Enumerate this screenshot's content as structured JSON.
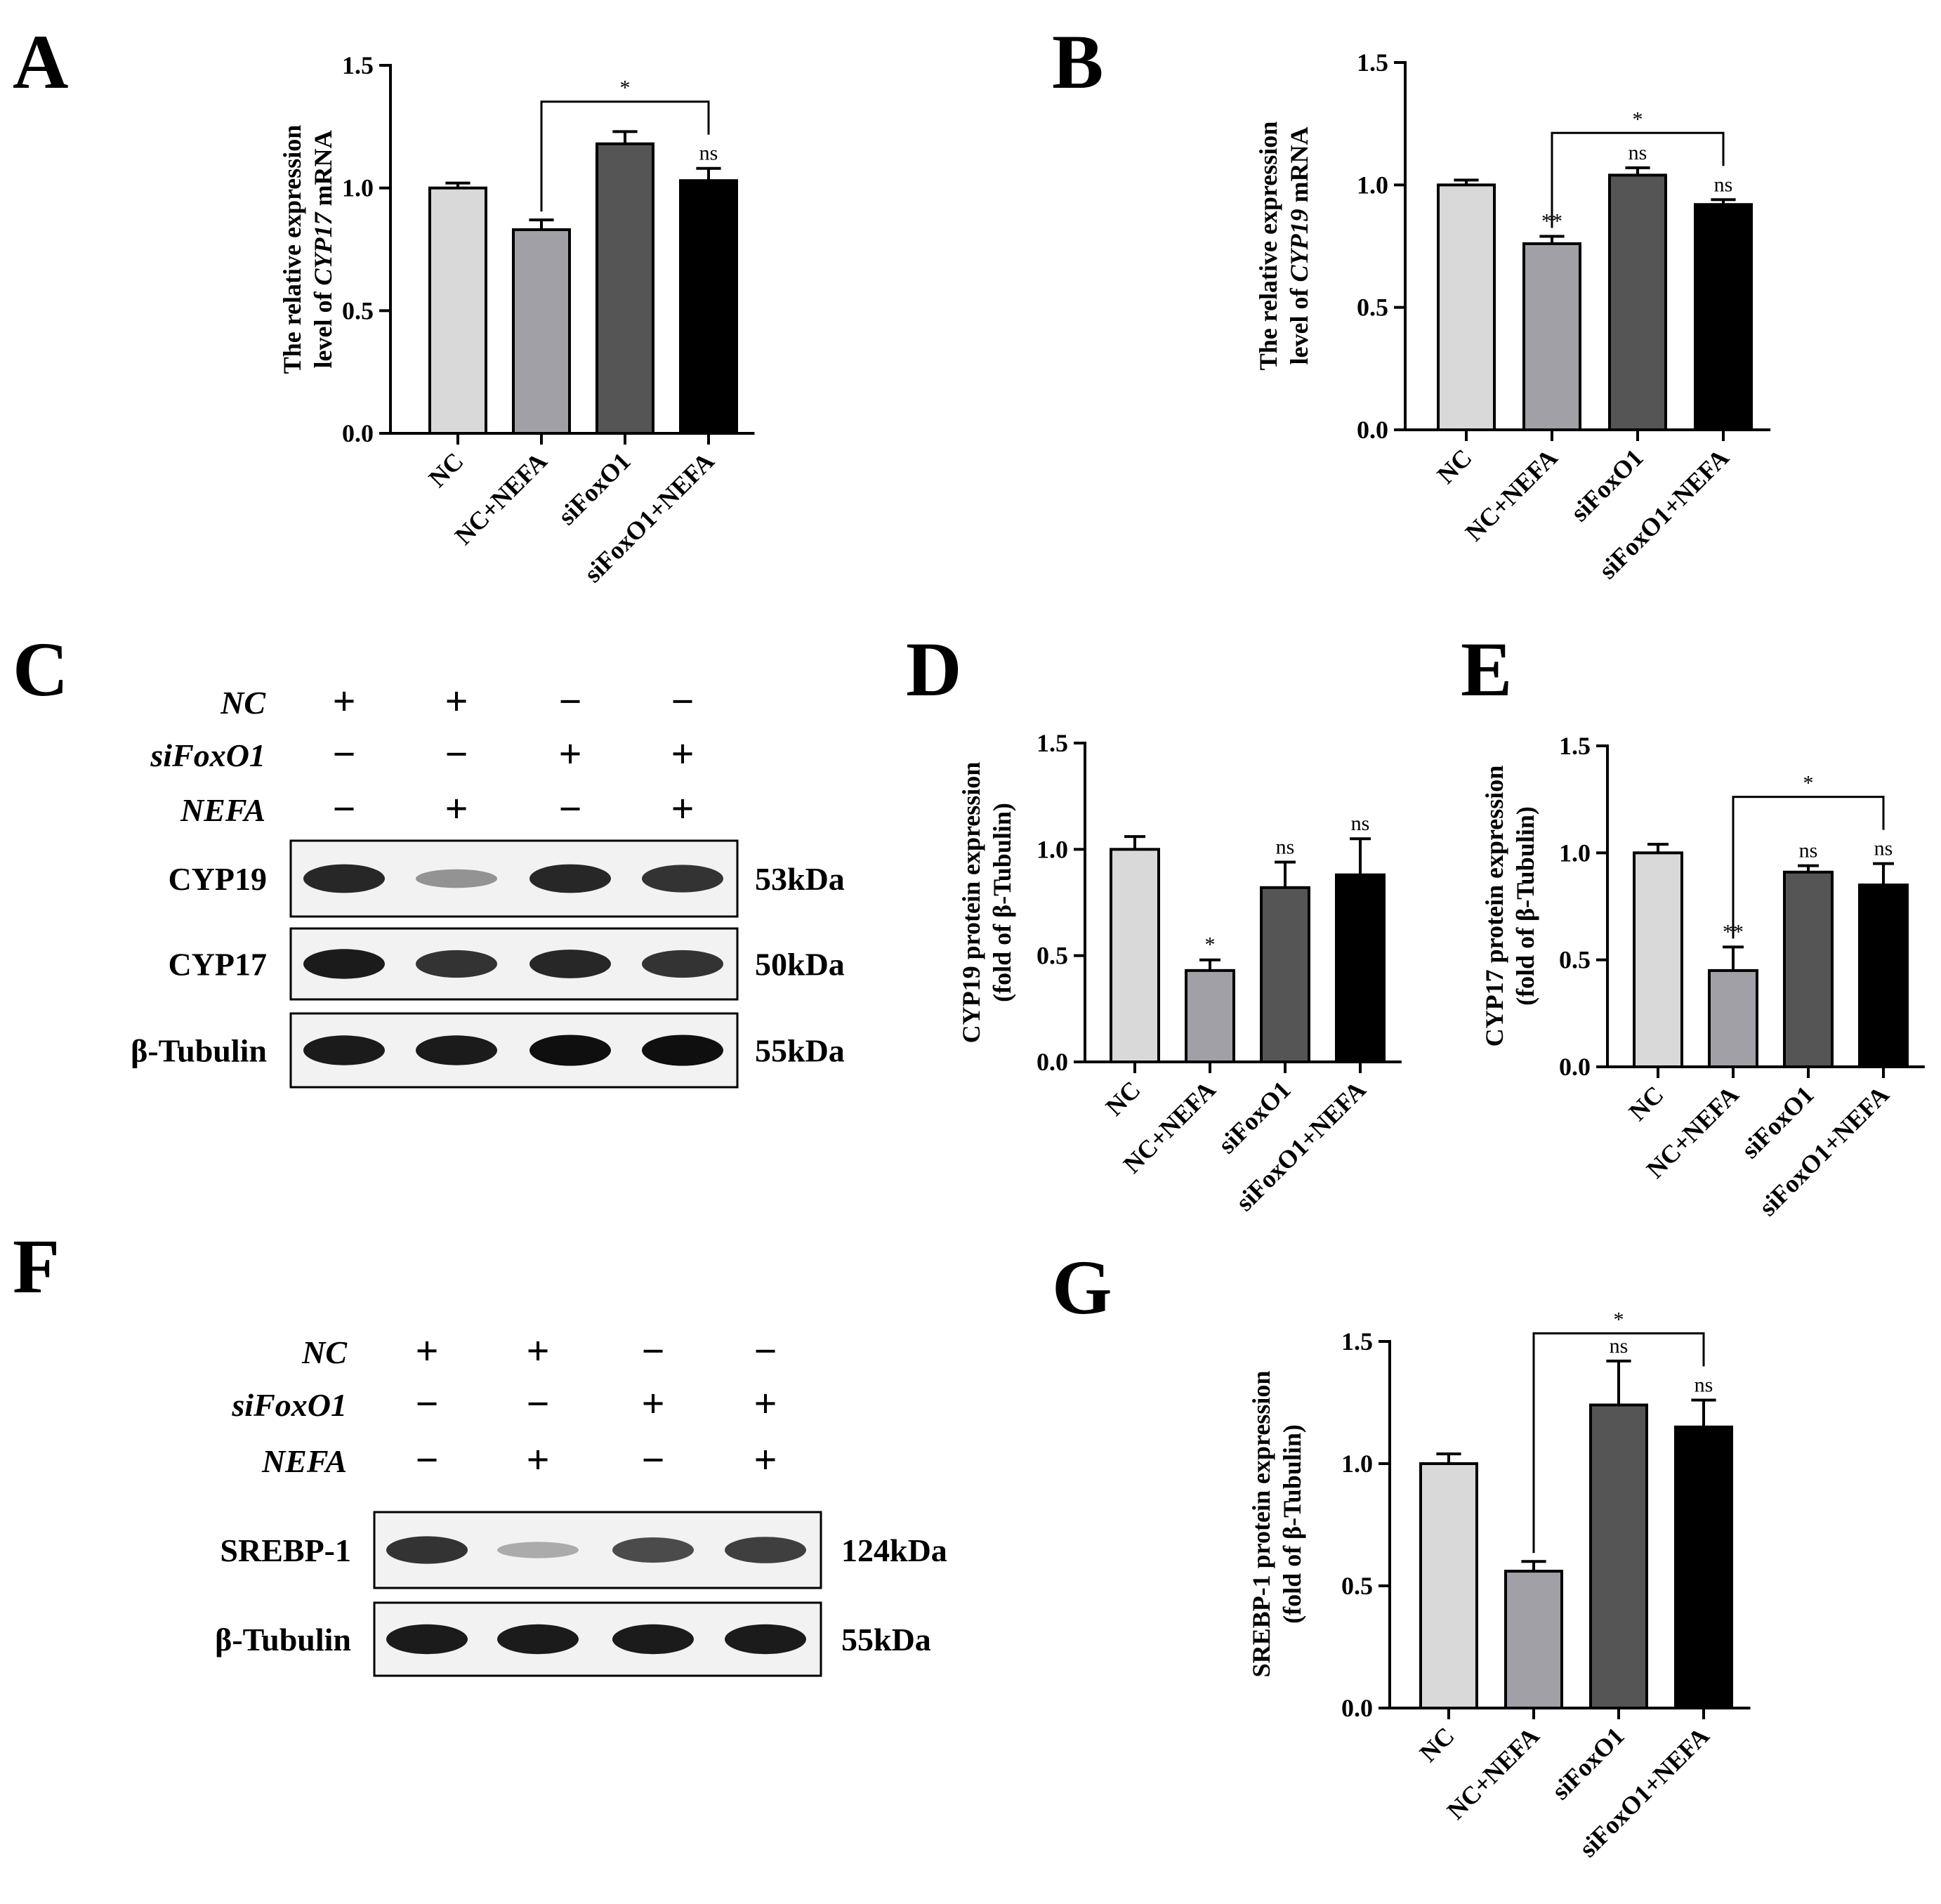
{
  "colors": {
    "NC": "#d9d9d9",
    "NC+NEFA": "#a0a0a6",
    "siFoxO1": "#555555",
    "siFoxO1+NEFA": "#000000"
  },
  "panels": {
    "A": "A",
    "B": "B",
    "C": "C",
    "D": "D",
    "E": "E",
    "F": "F",
    "G": "G"
  },
  "chart_data": [
    {
      "id": "A",
      "type": "bar",
      "ylabel_line1": "The relative expression",
      "ylabel_line2_pre": "level of ",
      "ylabel_line2_em": "CYP17",
      "ylabel_line2_post": " mRNA",
      "categories": [
        "NC",
        "NC+NEFA",
        "siFoxO1",
        "siFoxO1+NEFA"
      ],
      "values": [
        1.0,
        0.83,
        1.18,
        1.03
      ],
      "errors": [
        0.02,
        0.04,
        0.05,
        0.05
      ],
      "ylim": [
        0,
        1.5
      ],
      "yticks": [
        "0.0",
        "0.5",
        "1.0",
        "1.5"
      ],
      "bar_labels": [
        "",
        "",
        "",
        "ns"
      ],
      "bracket": {
        "from": 1,
        "to": 3,
        "label": "*"
      }
    },
    {
      "id": "B",
      "type": "bar",
      "ylabel_line1": "The relative expression",
      "ylabel_line2_pre": "level of ",
      "ylabel_line2_em": "CYP19",
      "ylabel_line2_post": " mRNA",
      "categories": [
        "NC",
        "NC+NEFA",
        "siFoxO1",
        "siFoxO1+NEFA"
      ],
      "values": [
        1.0,
        0.76,
        1.04,
        0.92
      ],
      "errors": [
        0.02,
        0.03,
        0.03,
        0.02
      ],
      "ylim": [
        0,
        1.5
      ],
      "yticks": [
        "0.0",
        "0.5",
        "1.0",
        "1.5"
      ],
      "bar_labels": [
        "",
        "**",
        "ns",
        "ns"
      ],
      "bracket": {
        "from": 1,
        "to": 3,
        "label": "*"
      }
    },
    {
      "id": "D",
      "type": "bar",
      "ylabel_line1": "CYP19 protein expression",
      "ylabel_line2_pre": "(fold of β-Tubulin)",
      "ylabel_line2_em": "",
      "ylabel_line2_post": "",
      "categories": [
        "NC",
        "NC+NEFA",
        "siFoxO1",
        "siFoxO1+NEFA"
      ],
      "values": [
        1.0,
        0.43,
        0.82,
        0.88
      ],
      "errors": [
        0.06,
        0.05,
        0.12,
        0.17
      ],
      "ylim": [
        0,
        1.5
      ],
      "yticks": [
        "0.0",
        "0.5",
        "1.0",
        "1.5"
      ],
      "bar_labels": [
        "",
        "*",
        "ns",
        "ns"
      ],
      "bracket": null
    },
    {
      "id": "E",
      "type": "bar",
      "ylabel_line1": "CYP17 protein expression",
      "ylabel_line2_pre": "(fold of β-Tubulin)",
      "ylabel_line2_em": "",
      "ylabel_line2_post": "",
      "categories": [
        "NC",
        "NC+NEFA",
        "siFoxO1",
        "siFoxO1+NEFA"
      ],
      "values": [
        1.0,
        0.45,
        0.91,
        0.85
      ],
      "errors": [
        0.04,
        0.11,
        0.03,
        0.1
      ],
      "ylim": [
        0,
        1.5
      ],
      "yticks": [
        "0.0",
        "0.5",
        "1.0",
        "1.5"
      ],
      "bar_labels": [
        "",
        "**",
        "ns",
        "ns"
      ],
      "bracket": {
        "from": 1,
        "to": 3,
        "label": "*"
      }
    },
    {
      "id": "G",
      "type": "bar",
      "ylabel_line1": "SREBP-1 protein expression",
      "ylabel_line2_pre": "(fold of β-Tubulin)",
      "ylabel_line2_em": "",
      "ylabel_line2_post": "",
      "categories": [
        "NC",
        "NC+NEFA",
        "siFoxO1",
        "siFoxO1+NEFA"
      ],
      "values": [
        1.0,
        0.56,
        1.24,
        1.15
      ],
      "errors": [
        0.04,
        0.04,
        0.18,
        0.11
      ],
      "ylim": [
        0,
        1.5
      ],
      "yticks": [
        "0.0",
        "0.5",
        "1.0",
        "1.5"
      ],
      "bar_labels": [
        "",
        "",
        "ns",
        "ns"
      ],
      "bracket": {
        "from": 1,
        "to": 3,
        "label": "*"
      }
    }
  ],
  "blots": [
    {
      "id": "C",
      "conditions": [
        {
          "name": "NC",
          "signs": [
            "+",
            "+",
            "−",
            "−"
          ]
        },
        {
          "name": "siFoxO1",
          "signs": [
            "−",
            "−",
            "+",
            "+"
          ]
        },
        {
          "name": "NEFA",
          "signs": [
            "−",
            "+",
            "−",
            "+"
          ]
        }
      ],
      "bands": [
        {
          "name": "CYP19",
          "kda": "53kDa",
          "intensity": [
            0.9,
            0.45,
            0.9,
            0.85
          ]
        },
        {
          "name": "CYP17",
          "kda": "50kDa",
          "intensity": [
            0.95,
            0.85,
            0.9,
            0.85
          ]
        },
        {
          "name": "β-Tubulin",
          "kda": "55kDa",
          "intensity": [
            0.95,
            0.95,
            1.0,
            1.0
          ]
        }
      ]
    },
    {
      "id": "F",
      "conditions": [
        {
          "name": "NC",
          "signs": [
            "+",
            "+",
            "−",
            "−"
          ]
        },
        {
          "name": "siFoxO1",
          "signs": [
            "−",
            "−",
            "+",
            "+"
          ]
        },
        {
          "name": "NEFA",
          "signs": [
            "−",
            "+",
            "−",
            "+"
          ]
        }
      ],
      "bands": [
        {
          "name": "SREBP-1",
          "kda": "124kDa",
          "intensity": [
            0.85,
            0.35,
            0.75,
            0.8
          ]
        },
        {
          "name": "β-Tubulin",
          "kda": "55kDa",
          "intensity": [
            0.95,
            0.95,
            0.95,
            0.95
          ]
        }
      ]
    }
  ]
}
